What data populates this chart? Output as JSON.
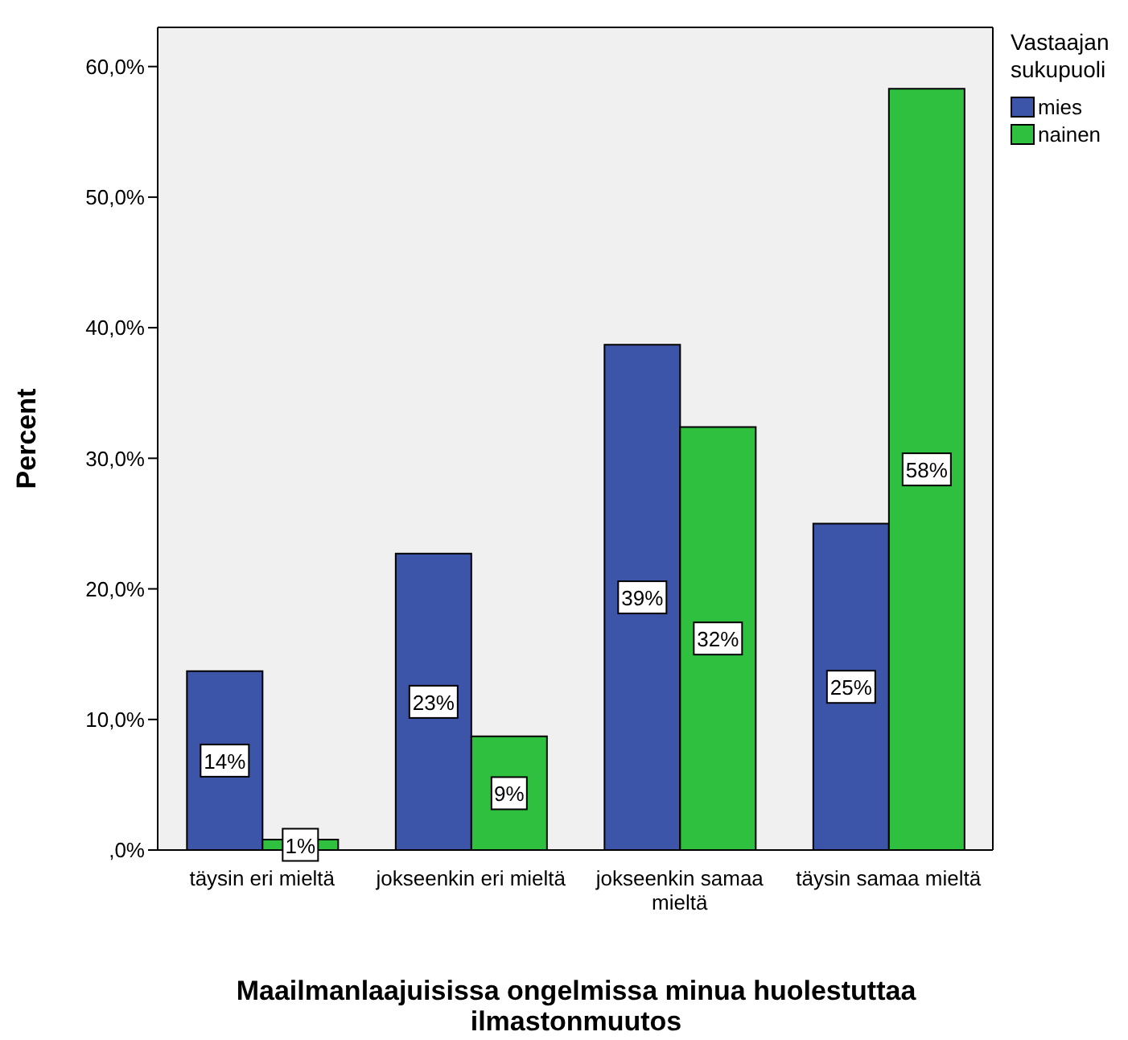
{
  "chart_data": {
    "type": "bar",
    "xlabel": "Maailmanlaajuisissa ongelmissa minua huolestuttaa  ilmastonmuutos",
    "ylabel": "Percent",
    "legend_title": "Vastaajan sukupuoli",
    "categories": [
      "täysin eri mieltä",
      "jokseenkin eri mieltä",
      "jokseenkin samaa mieltä",
      "täysin samaa mieltä"
    ],
    "series": [
      {
        "name": "mies",
        "color": "#3d55a8",
        "values": [
          13.7,
          22.7,
          38.7,
          25.0
        ],
        "value_labels": [
          "14%",
          "23%",
          "39%",
          "25%"
        ]
      },
      {
        "name": "nainen",
        "color": "#30c040",
        "values": [
          0.8,
          8.7,
          32.4,
          58.3
        ],
        "value_labels": [
          "1%",
          "9%",
          "32%",
          "58%"
        ]
      }
    ],
    "ylim": [
      0,
      63
    ],
    "yticks": [
      {
        "value": 0,
        "label": ",0%"
      },
      {
        "value": 10,
        "label": "10,0%"
      },
      {
        "value": 20,
        "label": "20,0%"
      },
      {
        "value": 30,
        "label": "30,0%"
      },
      {
        "value": 40,
        "label": "40,0%"
      },
      {
        "value": 50,
        "label": "50,0%"
      },
      {
        "value": 60,
        "label": "60,0%"
      }
    ],
    "legend": "top right",
    "grid": false
  }
}
